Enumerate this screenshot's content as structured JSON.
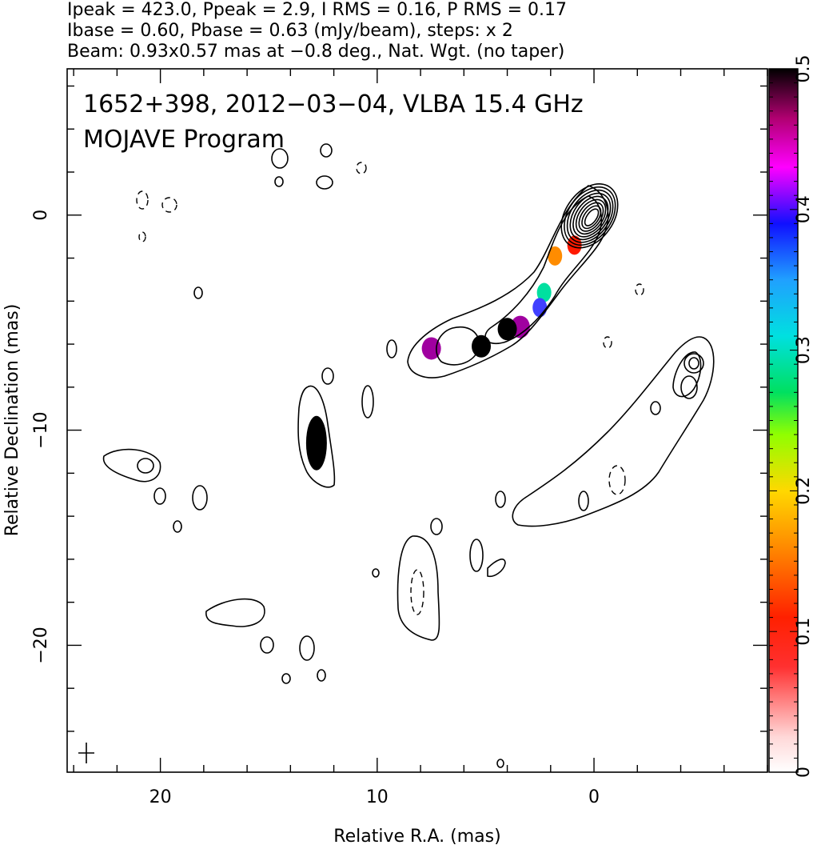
{
  "header": {
    "line1": "Ipeak = 423.0, Ppeak = 2.9, I RMS = 0.16, P RMS = 0.17",
    "line2": "Ibase = 0.60, Pbase = 0.63 (mJy/beam), steps: x 2",
    "line3": "Beam: 0.93x0.57 mas at −0.8 deg., Nat. Wgt. (no taper)"
  },
  "chart_data": {
    "type": "heatmap",
    "title_line1": "1652+398, 2012−03−04, VLBA 15.4 GHz",
    "title_line2": "MOJAVE Program",
    "xlabel": "Relative R.A. (mas)",
    "ylabel": "Relative Declination (mas)",
    "xlim": [
      24.3,
      -8.0
    ],
    "ylim": [
      -25.9,
      6.8
    ],
    "x_ticks": [
      20,
      10,
      0
    ],
    "x_tick_labels": [
      "20",
      "10",
      "0"
    ],
    "y_ticks": [
      0,
      -10,
      -20
    ],
    "y_tick_labels": [
      "0",
      "−10",
      "−20"
    ],
    "colorbar": {
      "range": [
        0,
        0.5
      ],
      "ticks": [
        0,
        0.1,
        0.2,
        0.3,
        0.4,
        0.5
      ],
      "tick_labels": [
        "0",
        "0.1",
        "0.2",
        "0.3",
        "0.4",
        "0.5"
      ]
    },
    "contours": {
      "core_center": [
        0.0,
        0.0
      ],
      "base_mJy_per_beam": 0.6,
      "step_factor": 2,
      "peak_mJy_per_beam": 423.0
    },
    "polarization_blobs": [
      {
        "x": 0.9,
        "y": -1.4,
        "value": 0.08
      },
      {
        "x": 1.8,
        "y": -1.9,
        "value": 0.12
      },
      {
        "x": 2.3,
        "y": -3.6,
        "value": 0.25
      },
      {
        "x": 2.5,
        "y": -4.3,
        "value": 0.38
      },
      {
        "x": 3.4,
        "y": -5.2,
        "value": 0.45
      },
      {
        "x": 4.0,
        "y": -5.3,
        "value": 0.5
      },
      {
        "x": 5.2,
        "y": -6.1,
        "value": 0.5
      },
      {
        "x": 7.5,
        "y": -6.2,
        "value": 0.45
      },
      {
        "x": 12.8,
        "y": -10.6,
        "value": 0.5
      }
    ],
    "beam": {
      "major_mas": 0.93,
      "minor_mas": 0.57,
      "pa_deg": -0.8
    }
  }
}
